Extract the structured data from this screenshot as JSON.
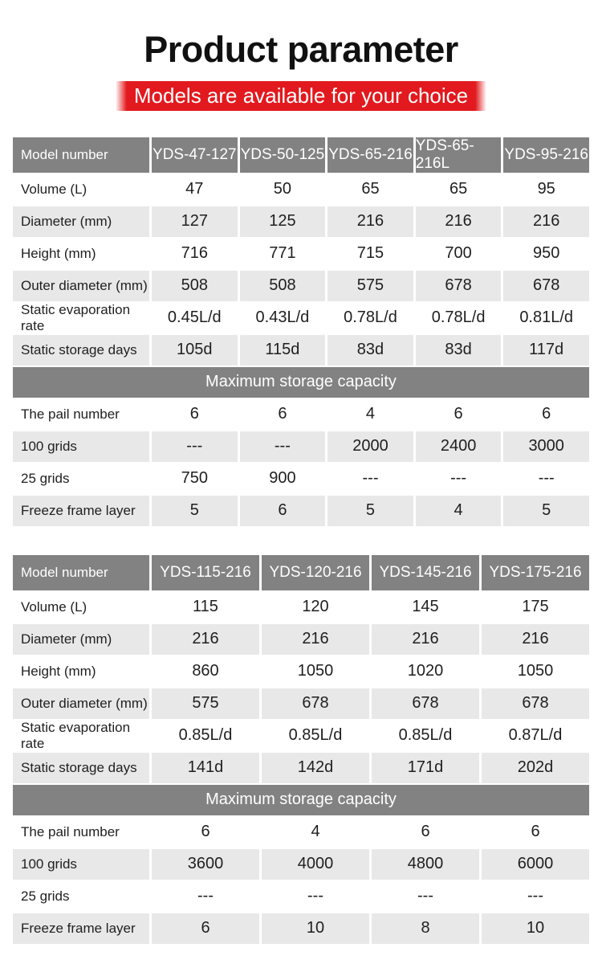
{
  "page": {
    "title": "Product parameter",
    "subtitle": "Models are available for your choice",
    "colors": {
      "banner_red": "#e2191e",
      "header_gray": "#828282",
      "band_gray": "#828282",
      "alt_row_gray": "#e8e8e8",
      "text_dark": "#1f1f1f",
      "text_white": "#ffffff"
    }
  },
  "tables": [
    {
      "header_label": "Model number",
      "models": [
        "YDS-47-127",
        "YDS-50-125",
        "YDS-65-216",
        "YDS-65-216L",
        "YDS-95-216"
      ],
      "rows": [
        {
          "label": "Volume (L)",
          "values": [
            "47",
            "50",
            "65",
            "65",
            "95"
          ]
        },
        {
          "label": "Diameter (mm)",
          "values": [
            "127",
            "125",
            "216",
            "216",
            "216"
          ]
        },
        {
          "label": "Height (mm)",
          "values": [
            "716",
            "771",
            "715",
            "700",
            "950"
          ]
        },
        {
          "label": "Outer diameter (mm)",
          "values": [
            "508",
            "508",
            "575",
            "678",
            "678"
          ]
        },
        {
          "label": "Static evaporation rate",
          "values": [
            "0.45L/d",
            "0.43L/d",
            "0.78L/d",
            "0.78L/d",
            "0.81L/d"
          ]
        },
        {
          "label": "Static storage days",
          "values": [
            "105d",
            "115d",
            "83d",
            "83d",
            "117d"
          ]
        },
        {
          "type": "band",
          "label": "Maximum storage capacity"
        },
        {
          "label": "The pail number",
          "values": [
            "6",
            "6",
            "4",
            "6",
            "6"
          ]
        },
        {
          "label": "100 grids",
          "values": [
            "---",
            "---",
            "2000",
            "2400",
            "3000"
          ]
        },
        {
          "label": "25 grids",
          "values": [
            "750",
            "900",
            "---",
            "---",
            "---"
          ]
        },
        {
          "label": "Freeze frame layer",
          "values": [
            "5",
            "6",
            "5",
            "4",
            "5"
          ]
        }
      ]
    },
    {
      "header_label": "Model number",
      "models": [
        "YDS-115-216",
        "YDS-120-216",
        "YDS-145-216",
        "YDS-175-216"
      ],
      "rows": [
        {
          "label": "Volume (L)",
          "values": [
            "115",
            "120",
            "145",
            "175"
          ]
        },
        {
          "label": "Diameter (mm)",
          "values": [
            "216",
            "216",
            "216",
            "216"
          ]
        },
        {
          "label": "Height (mm)",
          "values": [
            "860",
            "1050",
            "1020",
            "1050"
          ]
        },
        {
          "label": "Outer diameter (mm)",
          "values": [
            "575",
            "678",
            "678",
            "678"
          ]
        },
        {
          "label": "Static evaporation rate",
          "values": [
            "0.85L/d",
            "0.85L/d",
            "0.85L/d",
            "0.87L/d"
          ]
        },
        {
          "label": "Static storage days",
          "values": [
            "141d",
            "142d",
            "171d",
            "202d"
          ]
        },
        {
          "type": "band",
          "label": "Maximum storage capacity"
        },
        {
          "label": "The pail number",
          "values": [
            "6",
            "4",
            "6",
            "6"
          ]
        },
        {
          "label": "100 grids",
          "values": [
            "3600",
            "4000",
            "4800",
            "6000"
          ]
        },
        {
          "label": "25 grids",
          "values": [
            "---",
            "---",
            "---",
            "---"
          ]
        },
        {
          "label": "Freeze frame layer",
          "values": [
            "6",
            "10",
            "8",
            "10"
          ]
        }
      ]
    }
  ]
}
